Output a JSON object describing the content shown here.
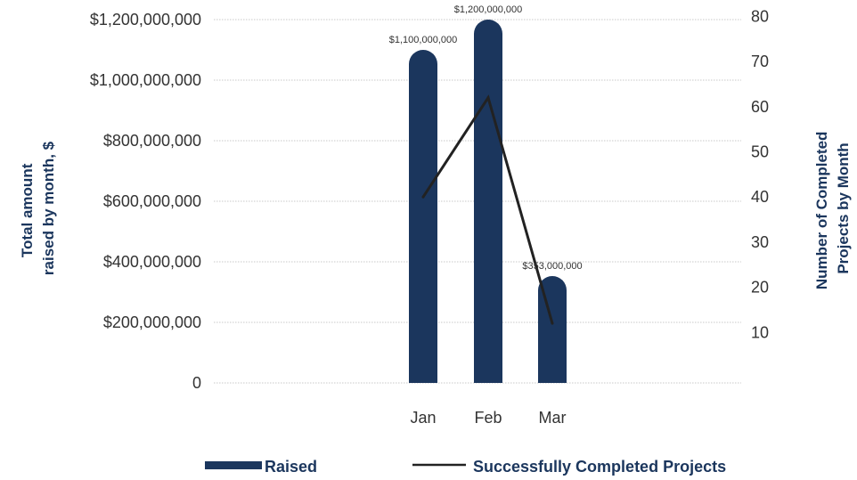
{
  "colors": {
    "bar": "#1b365d",
    "line": "#222222",
    "grid": "#c8c8c8",
    "title": "#1b365d"
  },
  "chart_data": {
    "type": "bar",
    "categories": [
      "Jan",
      "Feb",
      "Mar"
    ],
    "series": [
      {
        "name": "Raised",
        "type": "bar",
        "axis": "left",
        "values": [
          1100000000,
          1200000000,
          353000000
        ],
        "data_labels": [
          "$1,100,000,000",
          "$1,200,000,000",
          "$353,000,000"
        ]
      },
      {
        "name": "Successfully Completed Projects",
        "type": "line",
        "axis": "right",
        "values": [
          40,
          62,
          12
        ]
      }
    ],
    "ylabel": "Total amount raised by month, $",
    "ylabel_lines": [
      "Total amount",
      "raised by month, $"
    ],
    "y2label": "Number of Completed Projects by Month",
    "y2label_lines": [
      "Number of Completed",
      "Projects by Month"
    ],
    "ylim": [
      0,
      1200000000
    ],
    "y2lim": [
      0,
      80
    ],
    "yticks": [
      "0",
      "$200,000,000",
      "$400,000,000",
      "$600,000,000",
      "$800,000,000",
      "$1,000,000,000",
      "$1,200,000,000"
    ],
    "y2ticks": [
      "10",
      "20",
      "30",
      "40",
      "50",
      "60",
      "70",
      "80"
    ],
    "grid": true,
    "legend_position": "bottom"
  }
}
